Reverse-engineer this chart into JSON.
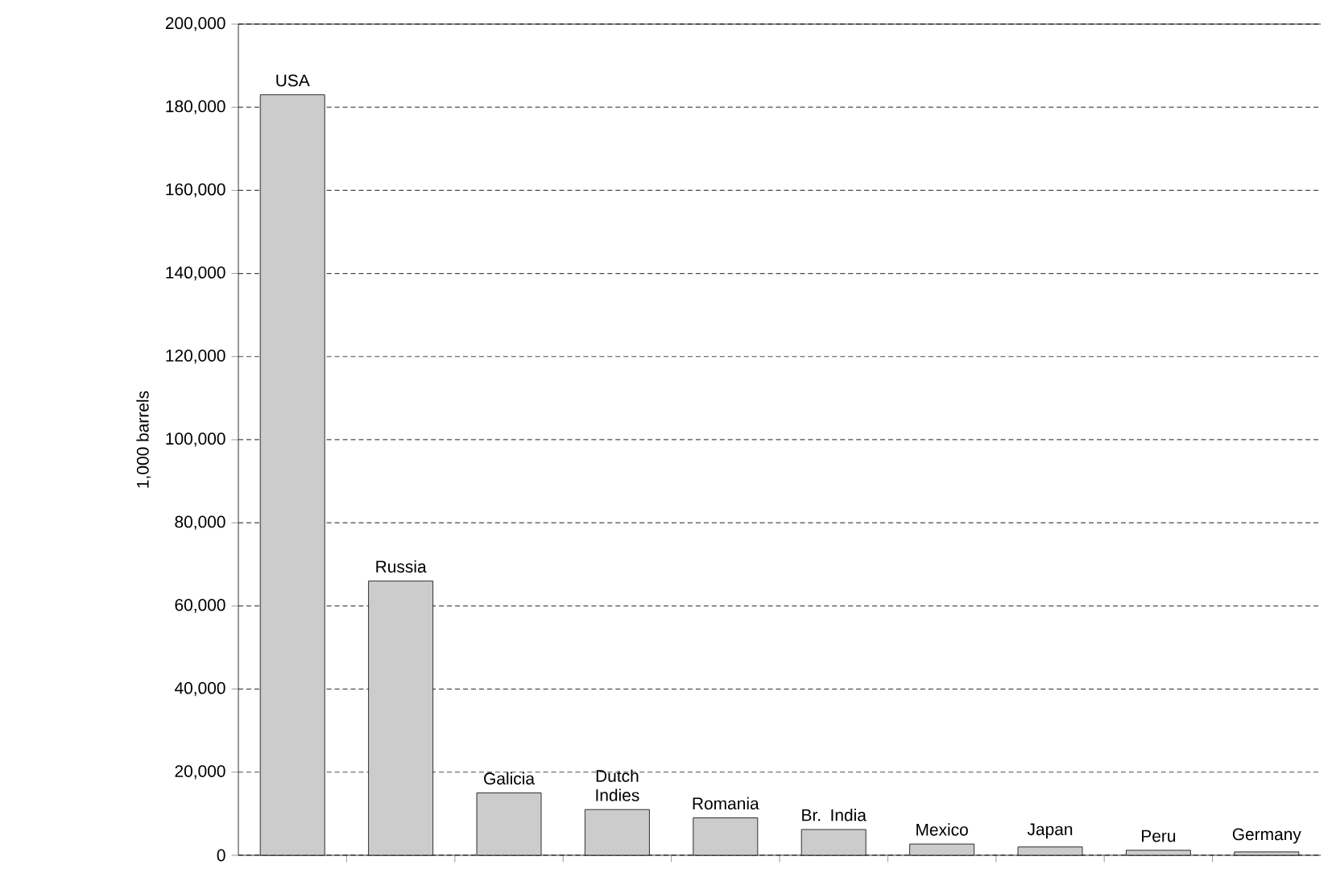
{
  "chart_data": {
    "type": "bar",
    "ylabel": "1,000 barrels",
    "categories": [
      "USA",
      "Russia",
      "Galicia",
      "Dutch Indies",
      "Romania",
      "Br. India",
      "Mexico",
      "Japan",
      "Peru",
      "Germany"
    ],
    "values": [
      183000,
      66000,
      15000,
      11000,
      9000,
      6200,
      2700,
      2000,
      1200,
      800
    ],
    "color": "#cccccc",
    "ylim": [
      0,
      200000
    ],
    "yticks": [
      {
        "value": 0,
        "label": "0"
      },
      {
        "value": 20000,
        "label": "20,000"
      },
      {
        "value": 40000,
        "label": "40,000"
      },
      {
        "value": 60000,
        "label": "60,000"
      },
      {
        "value": 80000,
        "label": "80,000"
      },
      {
        "value": 100000,
        "label": "100,000"
      },
      {
        "value": 120000,
        "label": "120,000"
      },
      {
        "value": 140000,
        "label": "140,000"
      },
      {
        "value": 160000,
        "label": "160,000"
      },
      {
        "value": 180000,
        "label": "180,000"
      },
      {
        "value": 200000,
        "label": "200,000"
      }
    ],
    "grid": "y"
  }
}
